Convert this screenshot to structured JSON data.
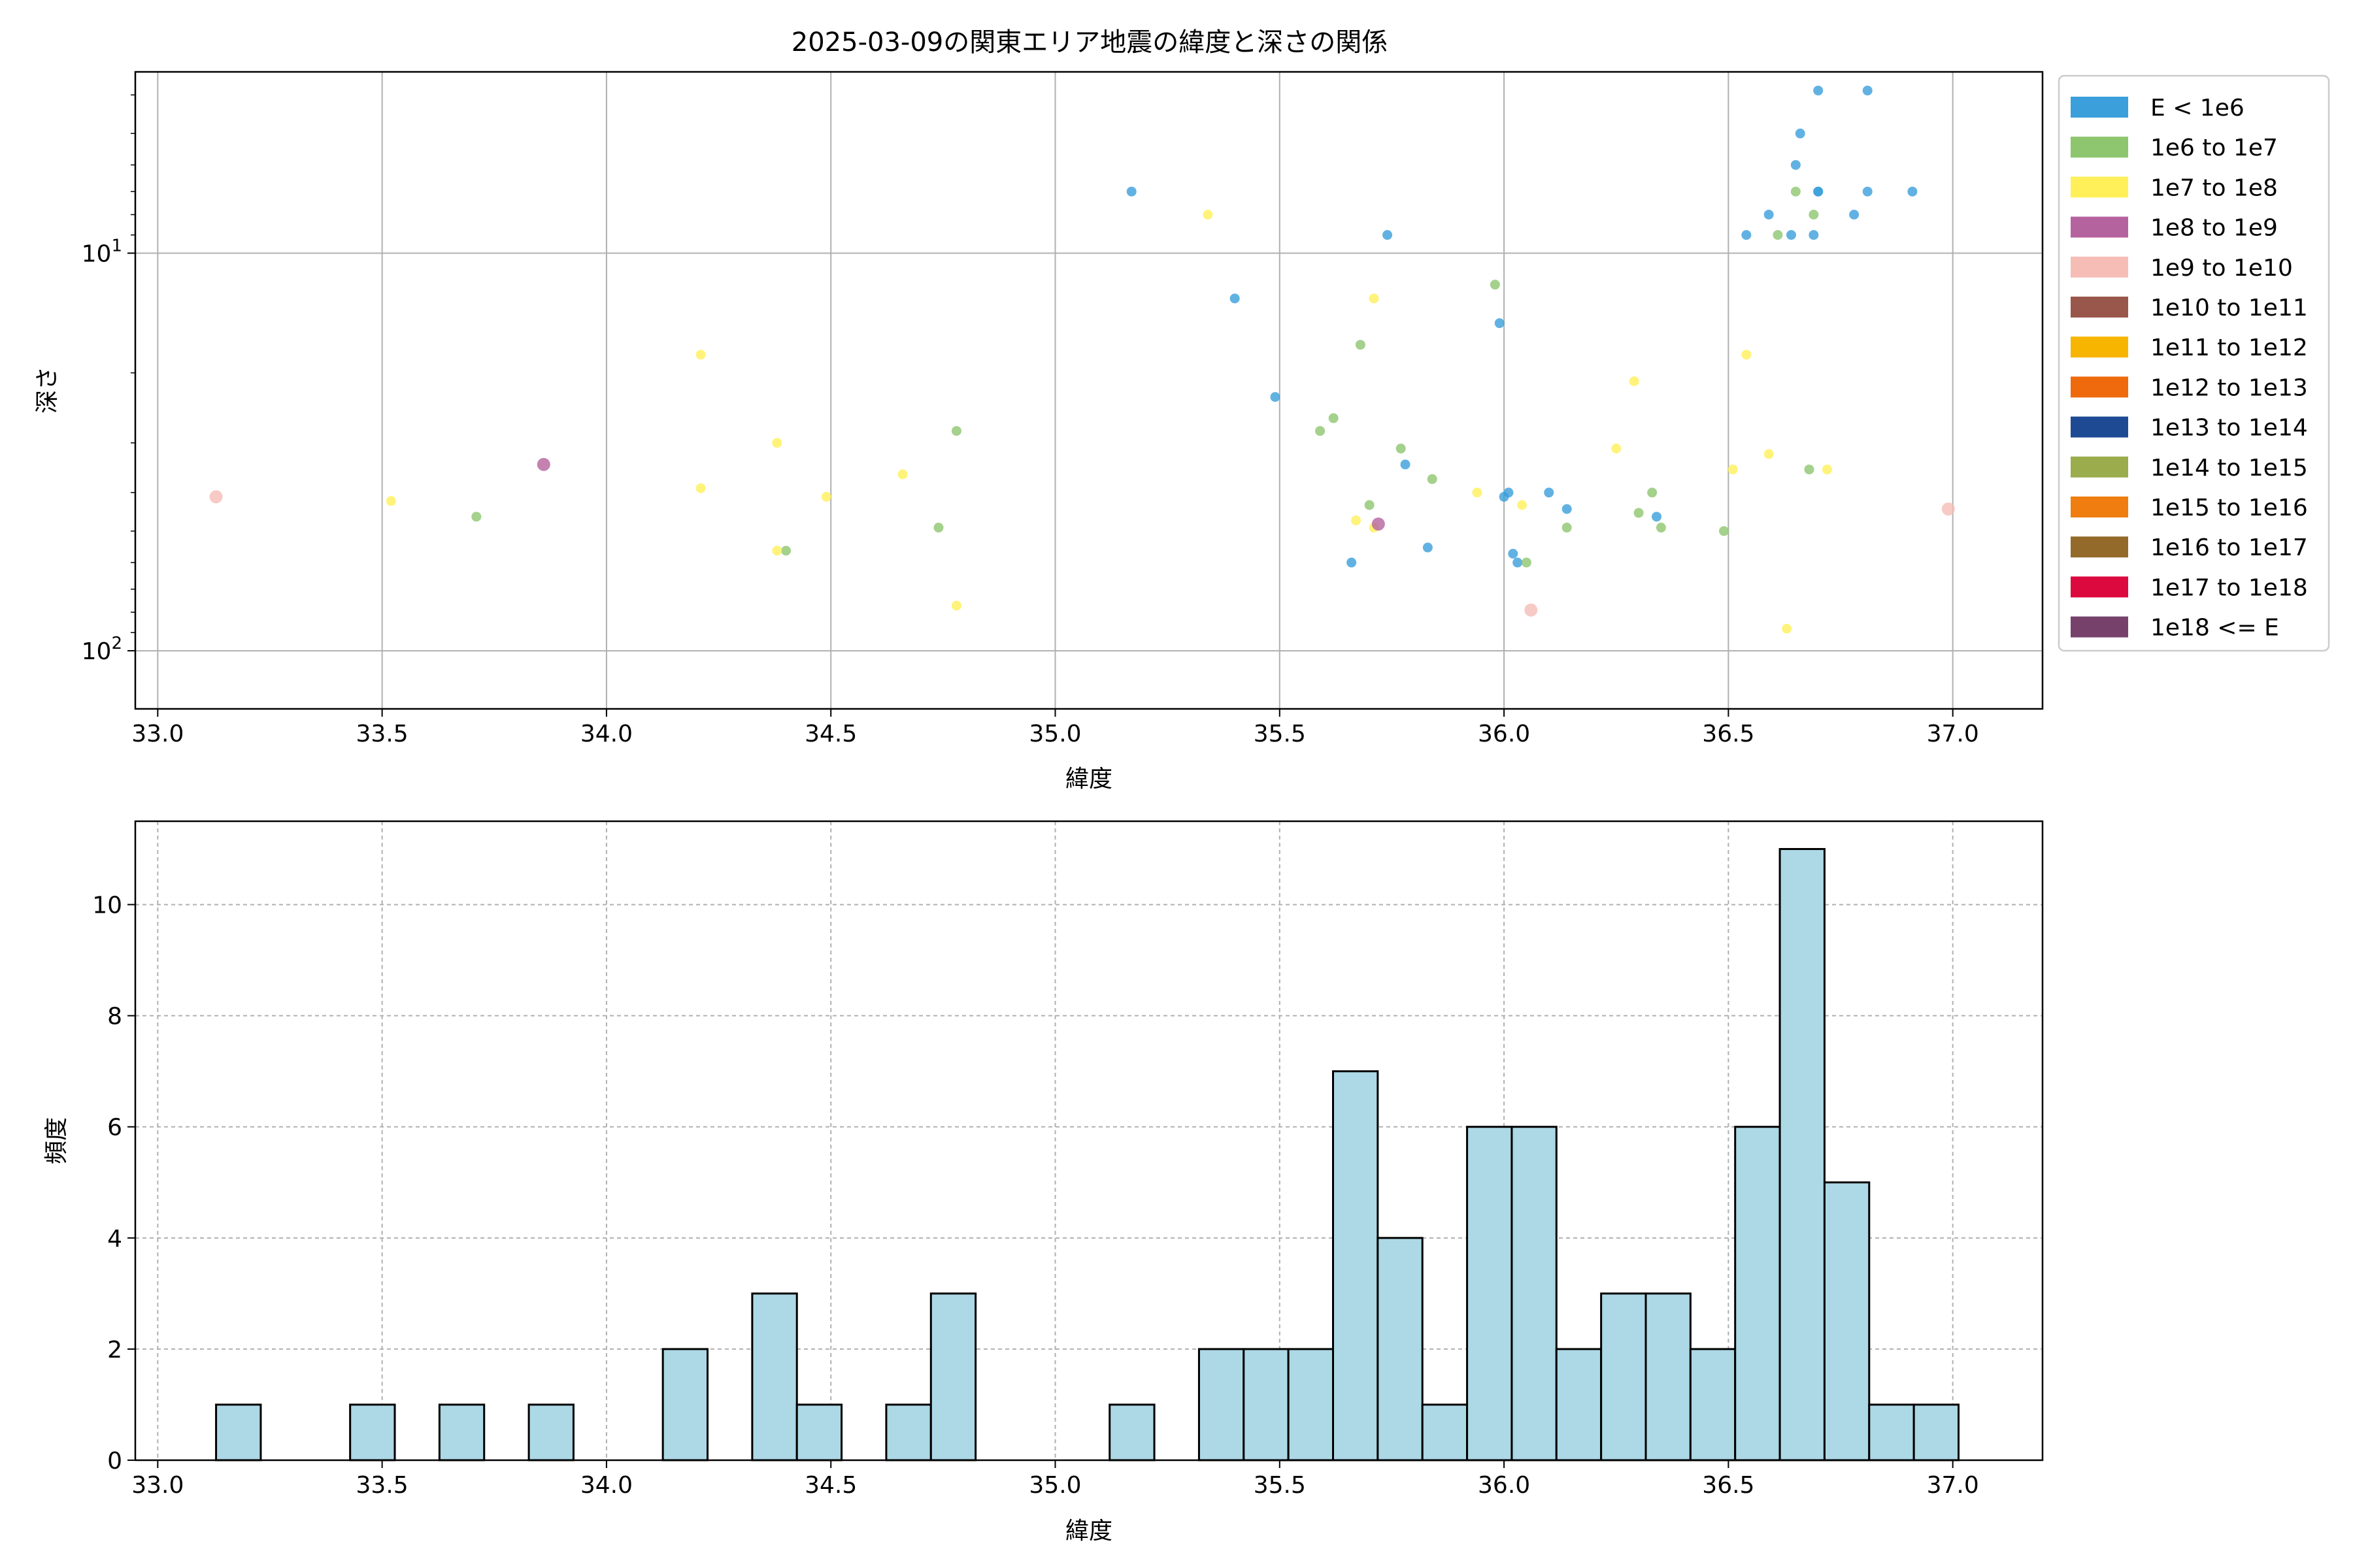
{
  "chart_data": [
    {
      "type": "scatter",
      "title": "2025-03-09の関東エリア地震の緯度と深さの関係",
      "xlabel": "緯度",
      "ylabel": "深さ",
      "xlim": [
        32.95,
        37.2
      ],
      "ylim": [
        140,
        3.5
      ],
      "y_scale": "log",
      "y_inverted": true,
      "grid": true,
      "x_ticks": [
        "33.0",
        "33.5",
        "34.0",
        "34.5",
        "35.0",
        "35.5",
        "36.0",
        "36.5",
        "37.0"
      ],
      "y_ticks": [
        "10^1",
        "10^2"
      ],
      "legend_position": "outside-right",
      "legend": [
        {
          "label": "E < 1e6",
          "color": "#3a9fdb"
        },
        {
          "label": "1e6 to 1e7",
          "color": "#8dc66e"
        },
        {
          "label": "1e7 to 1e8",
          "color": "#fff05a"
        },
        {
          "label": "1e8 to 1e9",
          "color": "#b5639e"
        },
        {
          "label": "1e9 to 1e10",
          "color": "#f5bdb6"
        },
        {
          "label": "1e10 to 1e11",
          "color": "#99574b"
        },
        {
          "label": "1e11 to 1e12",
          "color": "#f7b500"
        },
        {
          "label": "1e12 to 1e13",
          "color": "#ee6a0c"
        },
        {
          "label": "1e13 to 1e14",
          "color": "#1e4a94"
        },
        {
          "label": "1e14 to 1e15",
          "color": "#9aac4c"
        },
        {
          "label": "1e15 to 1e16",
          "color": "#ef7d0f"
        },
        {
          "label": "1e16 to 1e17",
          "color": "#936a2a"
        },
        {
          "label": "1e17 to 1e18",
          "color": "#dc093e"
        },
        {
          "label": "1e18 <= E",
          "color": "#76426c"
        }
      ],
      "series": [
        {
          "class": 0,
          "points": [
            [
              35.17,
              7
            ],
            [
              35.4,
              13
            ],
            [
              35.49,
              23
            ],
            [
              35.66,
              60
            ],
            [
              35.74,
              9
            ],
            [
              35.78,
              34
            ],
            [
              35.83,
              55
            ],
            [
              35.99,
              15
            ],
            [
              36.0,
              41
            ],
            [
              36.01,
              40
            ],
            [
              36.02,
              57
            ],
            [
              36.03,
              60
            ],
            [
              36.1,
              40
            ],
            [
              36.14,
              44
            ],
            [
              36.34,
              46
            ],
            [
              36.54,
              9
            ],
            [
              36.59,
              8
            ],
            [
              36.64,
              9
            ],
            [
              36.65,
              6
            ],
            [
              36.66,
              5
            ],
            [
              36.69,
              9
            ],
            [
              36.7,
              7
            ],
            [
              36.7,
              7
            ],
            [
              36.7,
              3.9
            ],
            [
              36.78,
              8
            ],
            [
              36.81,
              3.9
            ],
            [
              36.81,
              7
            ],
            [
              36.91,
              7
            ]
          ]
        },
        {
          "class": 1,
          "points": [
            [
              33.71,
              46
            ],
            [
              34.4,
              56
            ],
            [
              34.74,
              49
            ],
            [
              34.78,
              28
            ],
            [
              35.59,
              28
            ],
            [
              35.62,
              26
            ],
            [
              35.68,
              17
            ],
            [
              35.7,
              43
            ],
            [
              35.77,
              31
            ],
            [
              35.84,
              37
            ],
            [
              35.98,
              12
            ],
            [
              36.05,
              60
            ],
            [
              36.14,
              49
            ],
            [
              36.3,
              45
            ],
            [
              36.33,
              40
            ],
            [
              36.35,
              49
            ],
            [
              36.49,
              50
            ],
            [
              36.61,
              9
            ],
            [
              36.65,
              7
            ],
            [
              36.68,
              35
            ],
            [
              36.69,
              8
            ]
          ]
        },
        {
          "class": 2,
          "points": [
            [
              33.52,
              42
            ],
            [
              34.21,
              18
            ],
            [
              34.21,
              39
            ],
            [
              34.38,
              30
            ],
            [
              34.38,
              56
            ],
            [
              34.49,
              41
            ],
            [
              34.66,
              36
            ],
            [
              34.78,
              77
            ],
            [
              35.34,
              8
            ],
            [
              35.67,
              47
            ],
            [
              35.71,
              13
            ],
            [
              35.71,
              49
            ],
            [
              35.94,
              40
            ],
            [
              36.04,
              43
            ],
            [
              36.25,
              31
            ],
            [
              36.29,
              21
            ],
            [
              36.51,
              35
            ],
            [
              36.54,
              18
            ],
            [
              36.59,
              32
            ],
            [
              36.63,
              88
            ],
            [
              36.72,
              35
            ]
          ]
        },
        {
          "class": 3,
          "points": [
            [
              33.86,
              34
            ],
            [
              35.72,
              48
            ]
          ]
        },
        {
          "class": 4,
          "points": [
            [
              33.13,
              41
            ],
            [
              36.06,
              79
            ],
            [
              36.99,
              44
            ]
          ]
        }
      ]
    },
    {
      "type": "bar",
      "subtype": "histogram",
      "xlabel": "緯度",
      "ylabel": "頻度",
      "xlim": [
        32.95,
        37.2
      ],
      "ylim": [
        0,
        11.5
      ],
      "grid": true,
      "x_ticks": [
        "33.0",
        "33.5",
        "34.0",
        "34.5",
        "35.0",
        "35.5",
        "36.0",
        "36.5",
        "37.0"
      ],
      "y_ticks": [
        "0",
        "2",
        "4",
        "6",
        "8",
        "10"
      ],
      "bin_start": 33.13,
      "bin_width": 0.09956,
      "values": [
        1,
        0,
        0,
        1,
        0,
        1,
        0,
        1,
        0,
        0,
        2,
        0,
        3,
        1,
        0,
        1,
        3,
        0,
        0,
        0,
        1,
        0,
        2,
        2,
        2,
        7,
        4,
        1,
        6,
        6,
        2,
        3,
        3,
        2,
        6,
        11,
        5,
        1,
        1
      ]
    }
  ],
  "labels": {
    "title": "2025-03-09の関東エリア地震の緯度と深さの関係",
    "scatter_xlabel": "緯度",
    "scatter_ylabel": "深さ",
    "hist_xlabel": "緯度",
    "hist_ylabel": "頻度"
  }
}
